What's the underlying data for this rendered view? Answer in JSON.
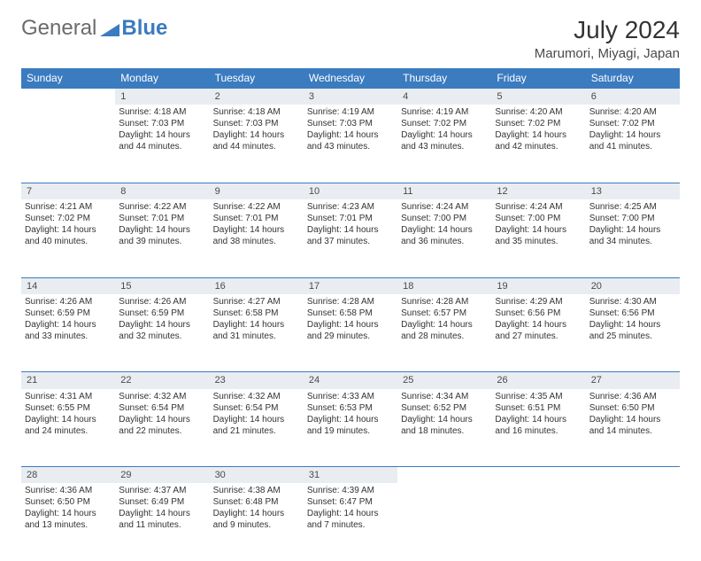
{
  "logo": {
    "text1": "General",
    "text2": "Blue"
  },
  "title": "July 2024",
  "location": "Marumori, Miyagi, Japan",
  "colors": {
    "header_bg": "#3b7bbf",
    "header_text": "#ffffff",
    "daynum_bg": "#e9edf1",
    "daynum_border": "#3b7bbf",
    "body_text": "#333333",
    "logo_gray": "#6b6b6b",
    "logo_blue": "#3b7bbf",
    "page_bg": "#ffffff"
  },
  "weekdays": [
    "Sunday",
    "Monday",
    "Tuesday",
    "Wednesday",
    "Thursday",
    "Friday",
    "Saturday"
  ],
  "weeks": [
    {
      "nums": [
        "",
        "1",
        "2",
        "3",
        "4",
        "5",
        "6"
      ],
      "cells": [
        null,
        {
          "sunrise": "Sunrise: 4:18 AM",
          "sunset": "Sunset: 7:03 PM",
          "day1": "Daylight: 14 hours",
          "day2": "and 44 minutes."
        },
        {
          "sunrise": "Sunrise: 4:18 AM",
          "sunset": "Sunset: 7:03 PM",
          "day1": "Daylight: 14 hours",
          "day2": "and 44 minutes."
        },
        {
          "sunrise": "Sunrise: 4:19 AM",
          "sunset": "Sunset: 7:03 PM",
          "day1": "Daylight: 14 hours",
          "day2": "and 43 minutes."
        },
        {
          "sunrise": "Sunrise: 4:19 AM",
          "sunset": "Sunset: 7:02 PM",
          "day1": "Daylight: 14 hours",
          "day2": "and 43 minutes."
        },
        {
          "sunrise": "Sunrise: 4:20 AM",
          "sunset": "Sunset: 7:02 PM",
          "day1": "Daylight: 14 hours",
          "day2": "and 42 minutes."
        },
        {
          "sunrise": "Sunrise: 4:20 AM",
          "sunset": "Sunset: 7:02 PM",
          "day1": "Daylight: 14 hours",
          "day2": "and 41 minutes."
        }
      ]
    },
    {
      "nums": [
        "7",
        "8",
        "9",
        "10",
        "11",
        "12",
        "13"
      ],
      "cells": [
        {
          "sunrise": "Sunrise: 4:21 AM",
          "sunset": "Sunset: 7:02 PM",
          "day1": "Daylight: 14 hours",
          "day2": "and 40 minutes."
        },
        {
          "sunrise": "Sunrise: 4:22 AM",
          "sunset": "Sunset: 7:01 PM",
          "day1": "Daylight: 14 hours",
          "day2": "and 39 minutes."
        },
        {
          "sunrise": "Sunrise: 4:22 AM",
          "sunset": "Sunset: 7:01 PM",
          "day1": "Daylight: 14 hours",
          "day2": "and 38 minutes."
        },
        {
          "sunrise": "Sunrise: 4:23 AM",
          "sunset": "Sunset: 7:01 PM",
          "day1": "Daylight: 14 hours",
          "day2": "and 37 minutes."
        },
        {
          "sunrise": "Sunrise: 4:24 AM",
          "sunset": "Sunset: 7:00 PM",
          "day1": "Daylight: 14 hours",
          "day2": "and 36 minutes."
        },
        {
          "sunrise": "Sunrise: 4:24 AM",
          "sunset": "Sunset: 7:00 PM",
          "day1": "Daylight: 14 hours",
          "day2": "and 35 minutes."
        },
        {
          "sunrise": "Sunrise: 4:25 AM",
          "sunset": "Sunset: 7:00 PM",
          "day1": "Daylight: 14 hours",
          "day2": "and 34 minutes."
        }
      ]
    },
    {
      "nums": [
        "14",
        "15",
        "16",
        "17",
        "18",
        "19",
        "20"
      ],
      "cells": [
        {
          "sunrise": "Sunrise: 4:26 AM",
          "sunset": "Sunset: 6:59 PM",
          "day1": "Daylight: 14 hours",
          "day2": "and 33 minutes."
        },
        {
          "sunrise": "Sunrise: 4:26 AM",
          "sunset": "Sunset: 6:59 PM",
          "day1": "Daylight: 14 hours",
          "day2": "and 32 minutes."
        },
        {
          "sunrise": "Sunrise: 4:27 AM",
          "sunset": "Sunset: 6:58 PM",
          "day1": "Daylight: 14 hours",
          "day2": "and 31 minutes."
        },
        {
          "sunrise": "Sunrise: 4:28 AM",
          "sunset": "Sunset: 6:58 PM",
          "day1": "Daylight: 14 hours",
          "day2": "and 29 minutes."
        },
        {
          "sunrise": "Sunrise: 4:28 AM",
          "sunset": "Sunset: 6:57 PM",
          "day1": "Daylight: 14 hours",
          "day2": "and 28 minutes."
        },
        {
          "sunrise": "Sunrise: 4:29 AM",
          "sunset": "Sunset: 6:56 PM",
          "day1": "Daylight: 14 hours",
          "day2": "and 27 minutes."
        },
        {
          "sunrise": "Sunrise: 4:30 AM",
          "sunset": "Sunset: 6:56 PM",
          "day1": "Daylight: 14 hours",
          "day2": "and 25 minutes."
        }
      ]
    },
    {
      "nums": [
        "21",
        "22",
        "23",
        "24",
        "25",
        "26",
        "27"
      ],
      "cells": [
        {
          "sunrise": "Sunrise: 4:31 AM",
          "sunset": "Sunset: 6:55 PM",
          "day1": "Daylight: 14 hours",
          "day2": "and 24 minutes."
        },
        {
          "sunrise": "Sunrise: 4:32 AM",
          "sunset": "Sunset: 6:54 PM",
          "day1": "Daylight: 14 hours",
          "day2": "and 22 minutes."
        },
        {
          "sunrise": "Sunrise: 4:32 AM",
          "sunset": "Sunset: 6:54 PM",
          "day1": "Daylight: 14 hours",
          "day2": "and 21 minutes."
        },
        {
          "sunrise": "Sunrise: 4:33 AM",
          "sunset": "Sunset: 6:53 PM",
          "day1": "Daylight: 14 hours",
          "day2": "and 19 minutes."
        },
        {
          "sunrise": "Sunrise: 4:34 AM",
          "sunset": "Sunset: 6:52 PM",
          "day1": "Daylight: 14 hours",
          "day2": "and 18 minutes."
        },
        {
          "sunrise": "Sunrise: 4:35 AM",
          "sunset": "Sunset: 6:51 PM",
          "day1": "Daylight: 14 hours",
          "day2": "and 16 minutes."
        },
        {
          "sunrise": "Sunrise: 4:36 AM",
          "sunset": "Sunset: 6:50 PM",
          "day1": "Daylight: 14 hours",
          "day2": "and 14 minutes."
        }
      ]
    },
    {
      "nums": [
        "28",
        "29",
        "30",
        "31",
        "",
        "",
        ""
      ],
      "cells": [
        {
          "sunrise": "Sunrise: 4:36 AM",
          "sunset": "Sunset: 6:50 PM",
          "day1": "Daylight: 14 hours",
          "day2": "and 13 minutes."
        },
        {
          "sunrise": "Sunrise: 4:37 AM",
          "sunset": "Sunset: 6:49 PM",
          "day1": "Daylight: 14 hours",
          "day2": "and 11 minutes."
        },
        {
          "sunrise": "Sunrise: 4:38 AM",
          "sunset": "Sunset: 6:48 PM",
          "day1": "Daylight: 14 hours",
          "day2": "and 9 minutes."
        },
        {
          "sunrise": "Sunrise: 4:39 AM",
          "sunset": "Sunset: 6:47 PM",
          "day1": "Daylight: 14 hours",
          "day2": "and 7 minutes."
        },
        null,
        null,
        null
      ]
    }
  ]
}
